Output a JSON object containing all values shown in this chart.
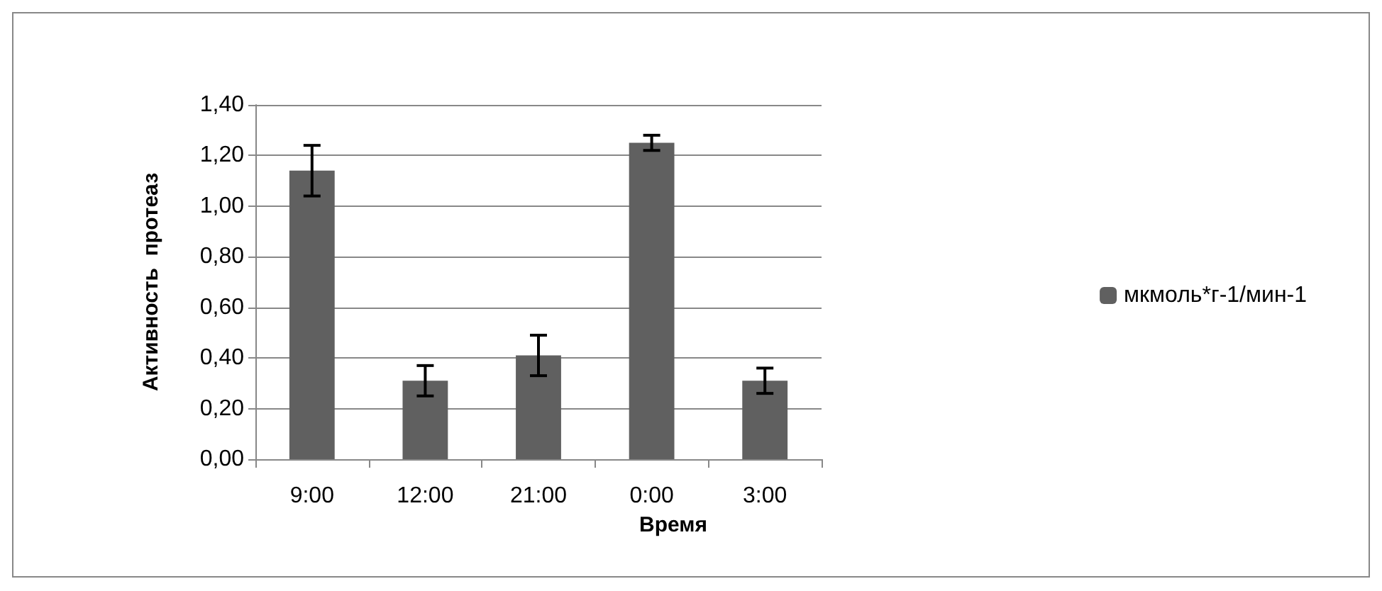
{
  "chart_data": {
    "type": "bar",
    "xlabel": "Время",
    "ylabel": "Активность  протеаз",
    "categories": [
      "9:00",
      "12:00",
      "21:00",
      "0:00",
      "3:00"
    ],
    "series": [
      {
        "name": "мкмоль*г-1/мин-1",
        "color": "#606060",
        "values": [
          1.14,
          0.31,
          0.41,
          1.25,
          0.31
        ],
        "errors": [
          0.1,
          0.06,
          0.08,
          0.03,
          0.05
        ]
      }
    ],
    "ylim": [
      0,
      1.4
    ],
    "yticks": [
      {
        "value": 0,
        "label": "0,00"
      },
      {
        "value": 0.2,
        "label": "0,20"
      },
      {
        "value": 0.4,
        "label": "0,40"
      },
      {
        "value": 0.6,
        "label": "0,60"
      },
      {
        "value": 0.8,
        "label": "0,80"
      },
      {
        "value": 1,
        "label": "1,00"
      },
      {
        "value": 1.2,
        "label": "1,20"
      },
      {
        "value": 1.4,
        "label": "1,40"
      }
    ],
    "grid": "y",
    "legend": "right"
  }
}
